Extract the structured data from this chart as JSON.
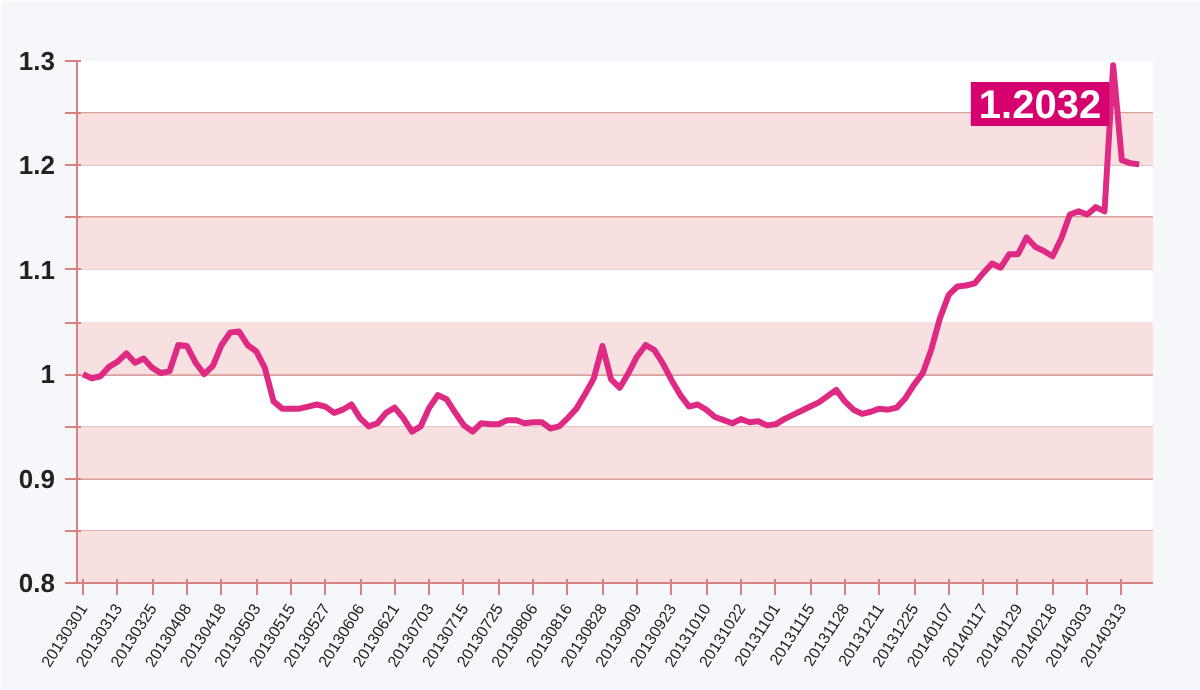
{
  "chart_data": {
    "type": "line",
    "categories": [
      "20130301",
      null,
      null,
      null,
      "20130313",
      null,
      null,
      null,
      "20130325",
      null,
      null,
      null,
      "20130408",
      null,
      null,
      null,
      "20130418",
      null,
      null,
      null,
      "20130503",
      null,
      null,
      null,
      "20130515",
      null,
      null,
      null,
      "20130527",
      null,
      null,
      null,
      "20130606",
      null,
      null,
      null,
      "20130621",
      null,
      null,
      null,
      "20130703",
      null,
      null,
      null,
      "20130715",
      null,
      null,
      null,
      "20130725",
      null,
      null,
      null,
      "20130806",
      null,
      null,
      null,
      "20130816",
      null,
      null,
      null,
      "20130828",
      null,
      null,
      null,
      "20130909",
      null,
      null,
      null,
      "20130923",
      null,
      null,
      null,
      "20131010",
      null,
      null,
      null,
      "20131022",
      null,
      null,
      null,
      "20131101",
      null,
      null,
      null,
      "20131115",
      null,
      null,
      null,
      "20131128",
      null,
      null,
      null,
      "20131211",
      null,
      null,
      null,
      "20131225",
      null,
      null,
      null,
      "20140107",
      null,
      null,
      null,
      "20140117",
      null,
      null,
      null,
      "20140129",
      null,
      null,
      null,
      "20140218",
      null,
      null,
      null,
      "20140303",
      null,
      null,
      null,
      "20140313",
      null,
      null
    ],
    "series": [
      {
        "color": "#de2a82",
        "values": [
          1.0,
          0.996,
          0.998,
          1.007,
          1.012,
          1.02,
          1.011,
          1.015,
          1.006,
          1.001,
          1.003,
          1.028,
          1.027,
          1.011,
          1.0,
          1.008,
          1.028,
          1.04,
          1.041,
          1.028,
          1.022,
          1.006,
          0.974,
          0.967,
          0.967,
          0.967,
          0.969,
          0.971,
          0.969,
          0.963,
          0.966,
          0.971,
          0.958,
          0.95,
          0.953,
          0.963,
          0.968,
          0.958,
          0.945,
          0.95,
          0.968,
          0.98,
          0.976,
          0.963,
          0.951,
          0.945,
          0.953,
          0.952,
          0.952,
          0.956,
          0.956,
          0.953,
          0.954,
          0.954,
          0.948,
          0.95,
          0.958,
          0.967,
          0.981,
          0.996,
          1.027,
          0.995,
          0.987,
          1.001,
          1.017,
          1.028,
          1.023,
          1.01,
          0.994,
          0.98,
          0.969,
          0.971,
          0.966,
          0.959,
          0.956,
          0.953,
          0.957,
          0.954,
          0.955,
          0.951,
          0.952,
          0.957,
          0.961,
          0.965,
          0.969,
          0.973,
          0.979,
          0.985,
          0.974,
          0.966,
          0.962,
          0.964,
          0.967,
          0.966,
          0.968,
          0.977,
          0.99,
          1.001,
          1.024,
          1.054,
          1.076,
          1.084,
          1.085,
          1.087,
          1.097,
          1.106,
          1.102,
          1.115,
          1.115,
          1.131,
          1.122,
          1.118,
          1.113,
          1.13,
          1.153,
          1.156,
          1.153,
          1.16,
          1.156,
          1.296,
          1.205,
          1.202,
          1.201
        ]
      }
    ],
    "ylim": [
      0.8,
      1.3
    ],
    "yticks": [
      0.8,
      {
        "value": 0.85,
        "label": null
      },
      0.9,
      {
        "value": 0.95,
        "label": null
      },
      1,
      {
        "value": 1.05,
        "label": null
      },
      1.1,
      {
        "value": 1.15,
        "label": null
      },
      1.2,
      {
        "value": 1.25,
        "label": null
      },
      1.3
    ],
    "grid": "y",
    "bands": [
      {
        "axis": "y",
        "from": 0.8,
        "to": 0.85,
        "color": "#f8e0e0"
      },
      {
        "axis": "y",
        "from": 0.9,
        "to": 0.95,
        "color": "#f8e0e0"
      },
      {
        "axis": "y",
        "from": 1.0,
        "to": 1.05,
        "color": "#f8e0e0"
      },
      {
        "axis": "y",
        "from": 1.1,
        "to": 1.15,
        "color": "#f8e0e0"
      },
      {
        "axis": "y",
        "from": 1.2,
        "to": 1.25,
        "color": "#f8e0e0"
      }
    ],
    "annotations": [
      {
        "text": "1.2032",
        "y": 1.2032
      }
    ]
  }
}
